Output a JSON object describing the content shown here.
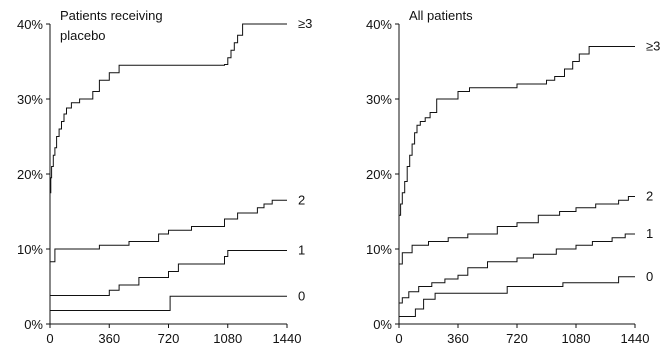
{
  "chart_data": [
    {
      "type": "line",
      "title": "Patients receiving placebo",
      "xlabel": "",
      "ylabel": "",
      "xlim": [
        0,
        1440
      ],
      "ylim": [
        0,
        40
      ],
      "x_ticks": [
        0,
        360,
        720,
        1080,
        1440
      ],
      "y_ticks": [
        0,
        10,
        20,
        30,
        40
      ],
      "y_tick_labels": [
        "0%",
        "10%",
        "20%",
        "30%",
        "40%"
      ],
      "grid": false,
      "legend": "none",
      "series": [
        {
          "label": "≥3",
          "points": [
            [
              0,
              17.5
            ],
            [
              5,
              19.5
            ],
            [
              10,
              21
            ],
            [
              20,
              22.5
            ],
            [
              30,
              23.5
            ],
            [
              40,
              25
            ],
            [
              55,
              26
            ],
            [
              70,
              27
            ],
            [
              85,
              28
            ],
            [
              100,
              28.8
            ],
            [
              130,
              29.5
            ],
            [
              180,
              30
            ],
            [
              260,
              31
            ],
            [
              300,
              32.5
            ],
            [
              360,
              33.5
            ],
            [
              420,
              34.5
            ],
            [
              600,
              34.5
            ],
            [
              1060,
              34.6
            ],
            [
              1080,
              35.5
            ],
            [
              1100,
              36.5
            ],
            [
              1120,
              37.5
            ],
            [
              1140,
              38.5
            ],
            [
              1170,
              40
            ],
            [
              1440,
              40
            ]
          ]
        },
        {
          "label": "2",
          "points": [
            [
              0,
              8.3
            ],
            [
              30,
              10
            ],
            [
              300,
              10.5
            ],
            [
              480,
              11
            ],
            [
              660,
              12
            ],
            [
              720,
              12.5
            ],
            [
              860,
              13
            ],
            [
              1060,
              14
            ],
            [
              1140,
              14.8
            ],
            [
              1260,
              15.5
            ],
            [
              1300,
              16
            ],
            [
              1350,
              16.5
            ],
            [
              1440,
              16.5
            ]
          ]
        },
        {
          "label": "1",
          "points": [
            [
              0,
              3.8
            ],
            [
              300,
              3.8
            ],
            [
              360,
              4.5
            ],
            [
              420,
              5.2
            ],
            [
              540,
              6.2
            ],
            [
              720,
              7
            ],
            [
              780,
              8
            ],
            [
              1060,
              9
            ],
            [
              1080,
              9.8
            ],
            [
              1440,
              9.8
            ]
          ]
        },
        {
          "label": "0",
          "points": [
            [
              0,
              1.8
            ],
            [
              720,
              1.8
            ],
            [
              730,
              3.7
            ],
            [
              1440,
              3.7
            ]
          ]
        }
      ]
    },
    {
      "type": "line",
      "title": "All patients",
      "xlabel": "",
      "ylabel": "",
      "xlim": [
        0,
        1440
      ],
      "ylim": [
        0,
        40
      ],
      "x_ticks": [
        0,
        360,
        720,
        1080,
        1440
      ],
      "y_ticks": [
        0,
        10,
        20,
        30,
        40
      ],
      "y_tick_labels": [
        "0%",
        "10%",
        "20%",
        "30%",
        "40%"
      ],
      "grid": false,
      "legend": "none",
      "series": [
        {
          "label": "≥3",
          "points": [
            [
              0,
              14.5
            ],
            [
              10,
              16
            ],
            [
              20,
              17.5
            ],
            [
              35,
              19
            ],
            [
              50,
              21
            ],
            [
              65,
              22.5
            ],
            [
              80,
              24
            ],
            [
              95,
              25.5
            ],
            [
              110,
              26.5
            ],
            [
              130,
              27
            ],
            [
              160,
              27.5
            ],
            [
              190,
              28.2
            ],
            [
              230,
              30
            ],
            [
              360,
              31
            ],
            [
              430,
              31.5
            ],
            [
              700,
              31.5
            ],
            [
              720,
              32
            ],
            [
              900,
              32.5
            ],
            [
              950,
              33
            ],
            [
              1010,
              34
            ],
            [
              1060,
              35
            ],
            [
              1100,
              36
            ],
            [
              1160,
              37
            ],
            [
              1440,
              37
            ]
          ]
        },
        {
          "label": "2",
          "points": [
            [
              0,
              8
            ],
            [
              20,
              9.5
            ],
            [
              80,
              10.5
            ],
            [
              180,
              11
            ],
            [
              300,
              11.5
            ],
            [
              420,
              12
            ],
            [
              600,
              13
            ],
            [
              720,
              13.5
            ],
            [
              850,
              14.5
            ],
            [
              980,
              15
            ],
            [
              1080,
              15.5
            ],
            [
              1200,
              16
            ],
            [
              1340,
              16.5
            ],
            [
              1400,
              17
            ],
            [
              1440,
              17
            ]
          ]
        },
        {
          "label": "1",
          "points": [
            [
              0,
              2.8
            ],
            [
              20,
              3.5
            ],
            [
              60,
              4.3
            ],
            [
              120,
              5
            ],
            [
              200,
              5.5
            ],
            [
              280,
              6
            ],
            [
              360,
              6.5
            ],
            [
              420,
              7.5
            ],
            [
              540,
              8.3
            ],
            [
              720,
              8.8
            ],
            [
              820,
              9.3
            ],
            [
              960,
              10
            ],
            [
              1080,
              10.5
            ],
            [
              1180,
              11
            ],
            [
              1300,
              11.5
            ],
            [
              1380,
              12
            ],
            [
              1440,
              12
            ]
          ]
        },
        {
          "label": "0",
          "points": [
            [
              0,
              1
            ],
            [
              60,
              1
            ],
            [
              100,
              2
            ],
            [
              150,
              3.3
            ],
            [
              220,
              4.1
            ],
            [
              600,
              4.1
            ],
            [
              660,
              5
            ],
            [
              960,
              5
            ],
            [
              1000,
              5.5
            ],
            [
              1300,
              5.5
            ],
            [
              1340,
              6.3
            ],
            [
              1440,
              6.3
            ]
          ]
        }
      ]
    }
  ]
}
